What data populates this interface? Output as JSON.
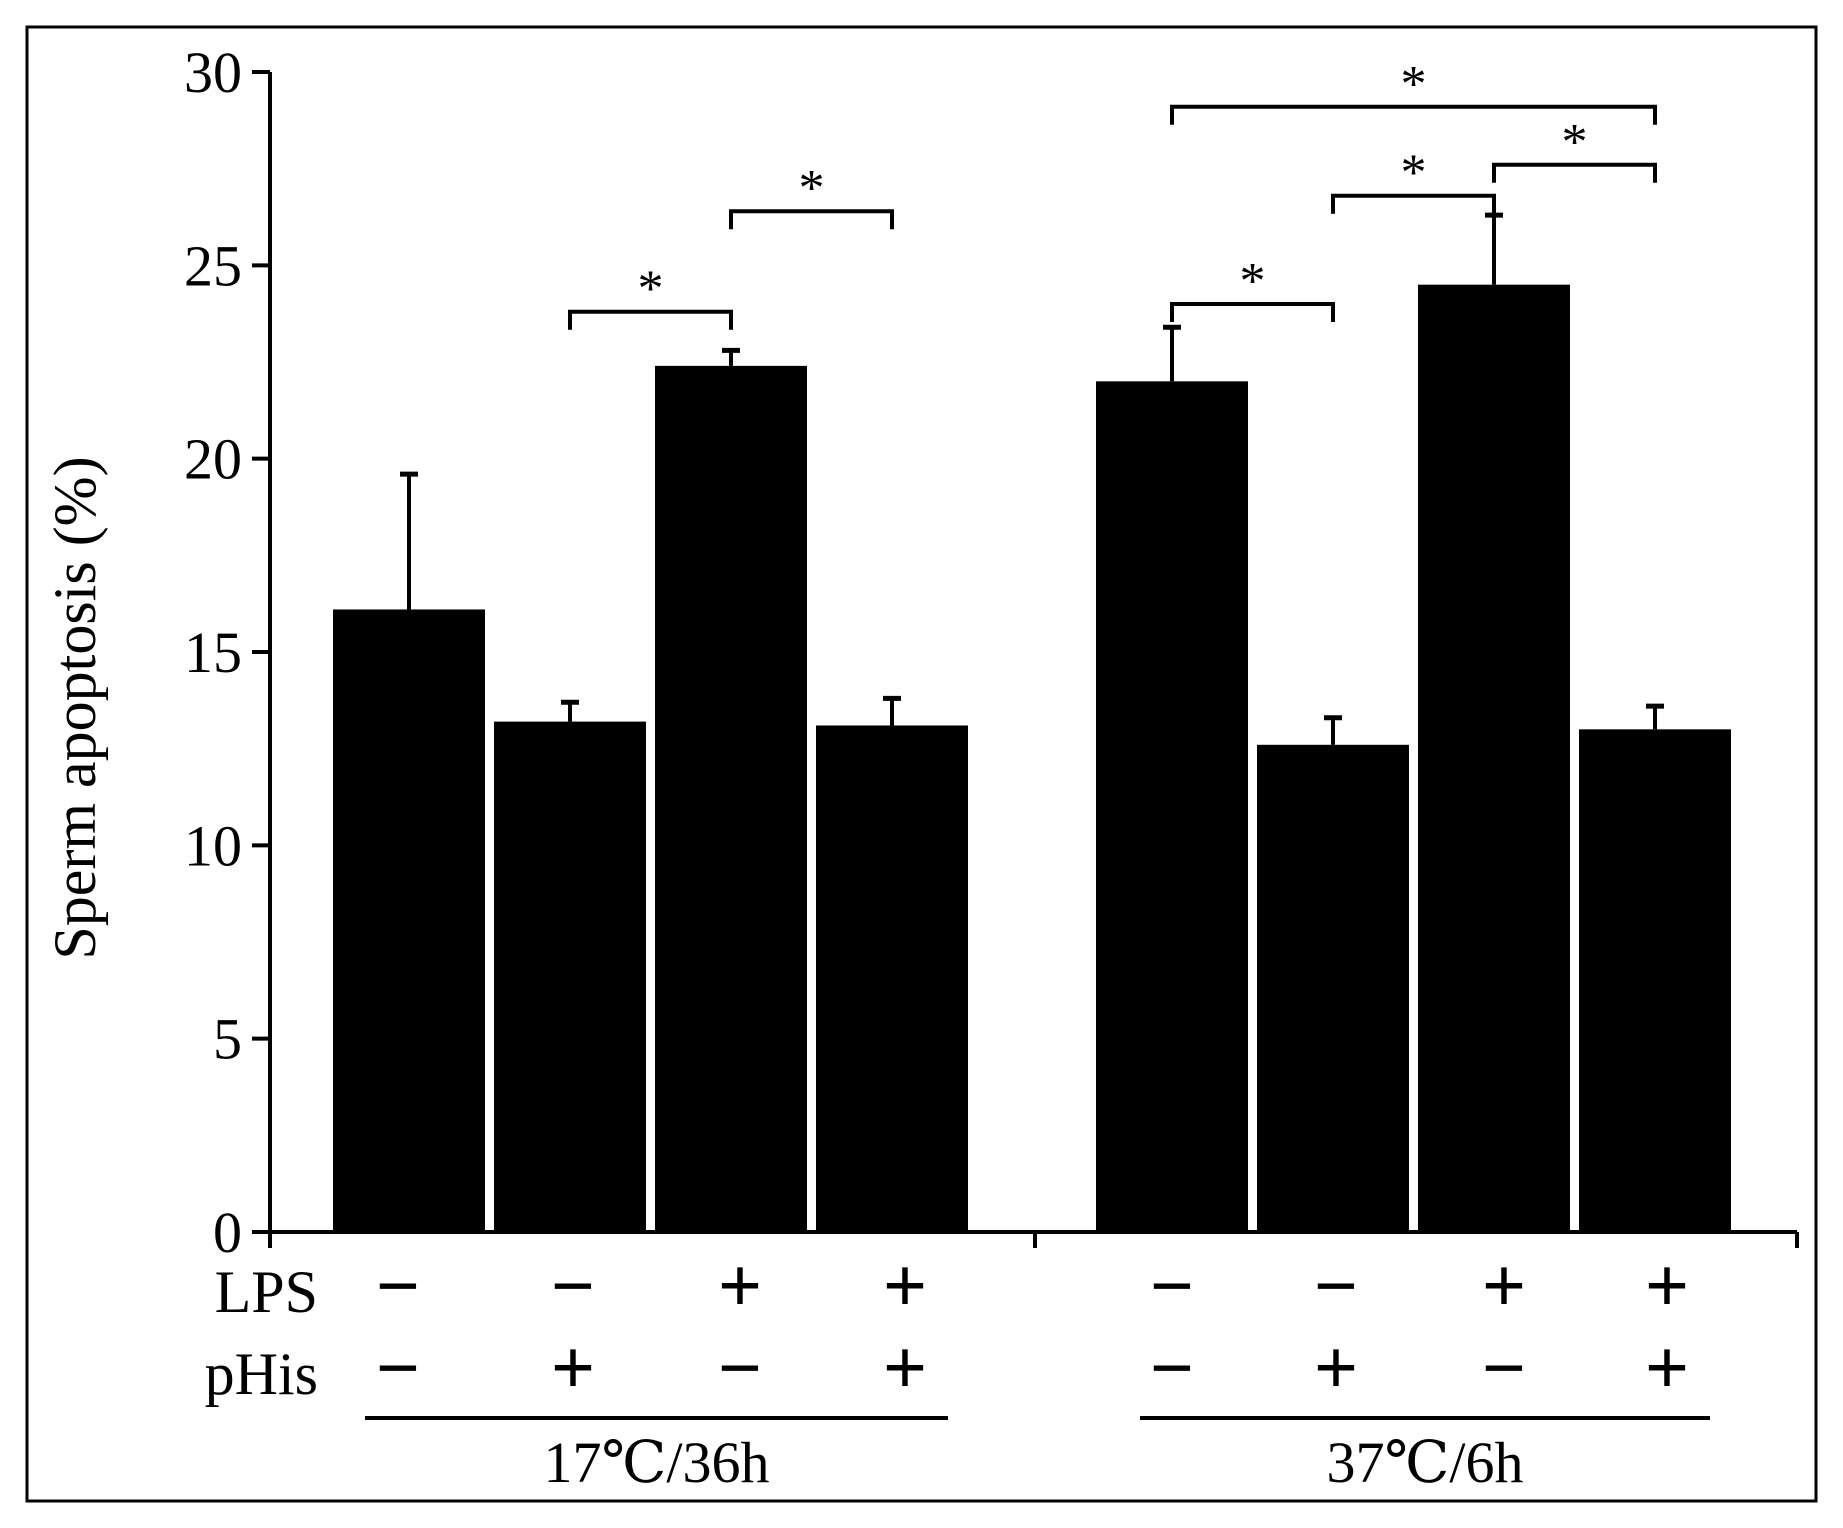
{
  "chart_data": {
    "type": "bar",
    "title": "",
    "ylabel": "Sperm apoptosis (%)",
    "xlabel": "",
    "ylim": [
      0,
      30
    ],
    "yticks": [
      "0",
      "5",
      "10",
      "15",
      "20",
      "25",
      "30"
    ],
    "condition_labels": [
      "LPS",
      "pHis"
    ],
    "groups": [
      {
        "label": "17℃/36h",
        "bars": [
          {
            "LPS": "−",
            "pHis": "−",
            "value": 16.1,
            "error": 3.5
          },
          {
            "LPS": "−",
            "pHis": "+",
            "value": 13.2,
            "error": 0.5
          },
          {
            "LPS": "+",
            "pHis": "−",
            "value": 22.4,
            "error": 0.4
          },
          {
            "LPS": "+",
            "pHis": "+",
            "value": 13.1,
            "error": 0.7
          }
        ]
      },
      {
        "label": "37℃/6h",
        "bars": [
          {
            "LPS": "−",
            "pHis": "−",
            "value": 22.0,
            "error": 1.4
          },
          {
            "LPS": "−",
            "pHis": "+",
            "value": 12.6,
            "error": 0.7
          },
          {
            "LPS": "+",
            "pHis": "−",
            "value": 24.5,
            "error": 1.8
          },
          {
            "LPS": "+",
            "pHis": "+",
            "value": 13.0,
            "error": 0.6
          }
        ]
      }
    ],
    "significance": [
      {
        "from": [
          0,
          1
        ],
        "to": [
          0,
          2
        ],
        "y": 23.8,
        "label": "*"
      },
      {
        "from": [
          0,
          2
        ],
        "to": [
          0,
          3
        ],
        "y": 26.4,
        "label": "*"
      },
      {
        "from": [
          1,
          0
        ],
        "to": [
          1,
          1
        ],
        "y": 24.0,
        "label": "*"
      },
      {
        "from": [
          1,
          1
        ],
        "to": [
          1,
          2
        ],
        "y": 26.8,
        "label": "*"
      },
      {
        "from": [
          1,
          2
        ],
        "to": [
          1,
          3
        ],
        "y": 27.6,
        "label": "*"
      },
      {
        "from": [
          1,
          0
        ],
        "to": [
          1,
          3
        ],
        "y": 29.1,
        "label": "*"
      }
    ],
    "colors": {
      "bar": "#000000",
      "axis": "#000000",
      "background": "#ffffff"
    }
  }
}
